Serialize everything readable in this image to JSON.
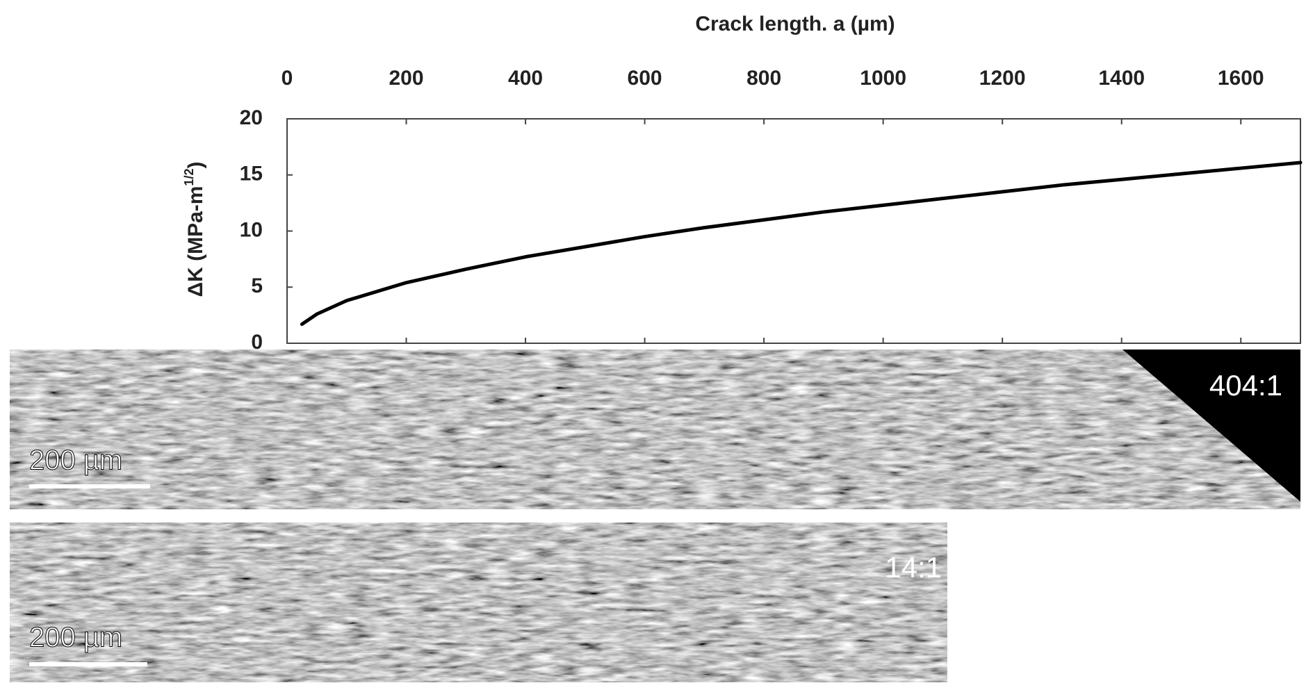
{
  "chart_data": {
    "type": "line",
    "title": "Crack length. a (µm)",
    "y_label": [
      "ΔK (MPa-m",
      "1/2",
      ")"
    ],
    "x": [
      25,
      50,
      100,
      200,
      300,
      400,
      500,
      600,
      700,
      800,
      900,
      1000,
      1100,
      1200,
      1300,
      1400,
      1500,
      1600,
      1700
    ],
    "series": [
      {
        "color": "#000000",
        "values": [
          1.7,
          2.6,
          3.8,
          5.4,
          6.6,
          7.7,
          8.6,
          9.5,
          10.3,
          11.0,
          11.7,
          12.3,
          12.9,
          13.5,
          14.1,
          14.6,
          15.1,
          15.6,
          16.1
        ]
      }
    ],
    "xlim": [
      0,
      1700
    ],
    "xticks": [
      0,
      200,
      400,
      600,
      800,
      1000,
      1200,
      1400,
      1600
    ],
    "ylim": [
      0,
      20
    ],
    "yticks": [
      0,
      5,
      10,
      15,
      20
    ],
    "x_axis_position": "top",
    "grid": false
  },
  "images": [
    {
      "scale_bar": "200 µm",
      "magnification": "404:1"
    },
    {
      "scale_bar": "200 µm",
      "magnification": "14:1"
    }
  ]
}
